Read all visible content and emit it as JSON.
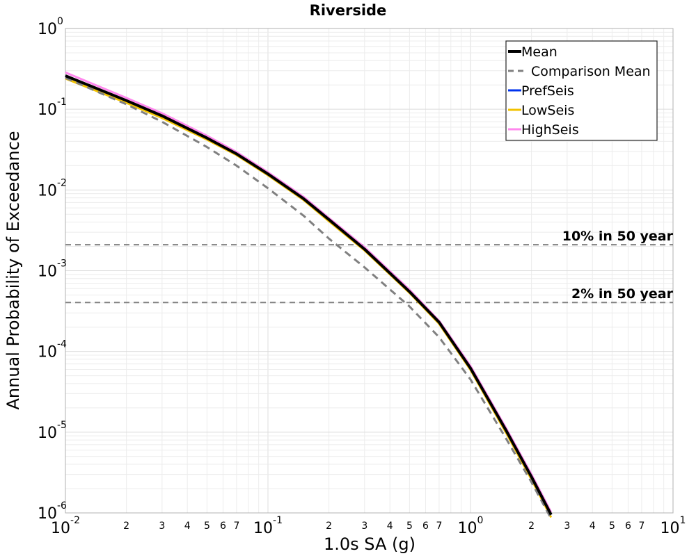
{
  "chart_data": {
    "type": "line",
    "title": "Riverside",
    "xlabel": "1.0s SA (g)",
    "ylabel": "Annual Probability of Exceedance",
    "xscale": "log",
    "yscale": "log",
    "xlim": [
      0.01,
      10
    ],
    "ylim": [
      1e-06,
      1
    ],
    "grid": true,
    "legend_position": "top-right",
    "x_major_ticks": [
      {
        "value": 0.01,
        "base": "10",
        "exp": "-2"
      },
      {
        "value": 0.1,
        "base": "10",
        "exp": "-1"
      },
      {
        "value": 1,
        "base": "10",
        "exp": "0"
      },
      {
        "value": 10,
        "base": "10",
        "exp": "1"
      }
    ],
    "y_major_ticks": [
      {
        "value": 1,
        "base": "10",
        "exp": "0"
      },
      {
        "value": 0.1,
        "base": "10",
        "exp": "-1"
      },
      {
        "value": 0.01,
        "base": "10",
        "exp": "-2"
      },
      {
        "value": 0.001,
        "base": "10",
        "exp": "-3"
      },
      {
        "value": 0.0001,
        "base": "10",
        "exp": "-4"
      },
      {
        "value": 1e-05,
        "base": "10",
        "exp": "-5"
      },
      {
        "value": 1e-06,
        "base": "10",
        "exp": "-6"
      }
    ],
    "x_minor_tick_labels": [
      "2",
      "3",
      "4",
      "5",
      "6",
      "7"
    ],
    "reference_lines": [
      {
        "label": "10% in 50 year",
        "y": 0.0021
      },
      {
        "label": "2% in 50 year",
        "y": 0.000404
      }
    ],
    "series": [
      {
        "name": "PrefSeis",
        "color": "#0033ee",
        "dash": "solid",
        "x": [
          0.01,
          0.02,
          0.03,
          0.05,
          0.07,
          0.1,
          0.15,
          0.2,
          0.3,
          0.5,
          0.7,
          1.0,
          1.5,
          2.0,
          2.5
        ],
        "y": [
          0.26,
          0.128,
          0.083,
          0.044,
          0.028,
          0.0158,
          0.0078,
          0.0043,
          0.00185,
          0.00055,
          0.00023,
          6.2e-05,
          1.05e-05,
          2.8e-06,
          9.5e-07
        ]
      },
      {
        "name": "LowSeis",
        "color": "#f2c200",
        "dash": "solid",
        "x": [
          0.01,
          0.02,
          0.03,
          0.05,
          0.07,
          0.1,
          0.15,
          0.2,
          0.3,
          0.5,
          0.7,
          1.0,
          1.5,
          2.0,
          2.5
        ],
        "y": [
          0.24,
          0.12,
          0.078,
          0.042,
          0.027,
          0.0152,
          0.0075,
          0.0041,
          0.00178,
          0.00053,
          0.00022,
          5.9e-05,
          9.8e-06,
          2.6e-06,
          8.8e-07
        ]
      },
      {
        "name": "HighSeis",
        "color": "#ff88ee",
        "dash": "solid",
        "x": [
          0.01,
          0.02,
          0.03,
          0.05,
          0.07,
          0.1,
          0.15,
          0.2,
          0.3,
          0.5,
          0.7,
          1.0,
          1.5,
          2.0,
          2.5
        ],
        "y": [
          0.285,
          0.138,
          0.089,
          0.047,
          0.0295,
          0.0166,
          0.0082,
          0.0045,
          0.00195,
          0.00058,
          0.00024,
          6.6e-05,
          1.12e-05,
          3e-06,
          1.02e-06
        ]
      },
      {
        "name": "Comparison Mean",
        "color": "#808080",
        "dash": "dashed",
        "x": [
          0.01,
          0.02,
          0.03,
          0.05,
          0.07,
          0.1,
          0.15,
          0.2,
          0.3,
          0.5,
          0.7,
          1.0,
          1.5,
          2.0,
          2.5
        ],
        "y": [
          0.245,
          0.115,
          0.07,
          0.034,
          0.02,
          0.0105,
          0.0048,
          0.0025,
          0.0011,
          0.00036,
          0.00015,
          4.5e-05,
          8.3e-06,
          2.4e-06,
          8.5e-07
        ]
      },
      {
        "name": "Mean",
        "color": "#000000",
        "dash": "solid",
        "x": [
          0.01,
          0.02,
          0.03,
          0.05,
          0.07,
          0.1,
          0.15,
          0.2,
          0.3,
          0.5,
          0.7,
          1.0,
          1.5,
          2.0,
          2.5
        ],
        "y": [
          0.26,
          0.128,
          0.083,
          0.044,
          0.028,
          0.0158,
          0.0078,
          0.0043,
          0.00185,
          0.00055,
          0.00023,
          6.2e-05,
          1.05e-05,
          2.8e-06,
          9.5e-07
        ]
      }
    ],
    "legend": [
      {
        "name": "Mean",
        "color": "#000000",
        "dash": "solid",
        "width": 4
      },
      {
        "name": "Comparison Mean",
        "color": "#808080",
        "dash": "dashed",
        "width": 3
      },
      {
        "name": "PrefSeis",
        "color": "#0033ee",
        "dash": "solid",
        "width": 3
      },
      {
        "name": "LowSeis",
        "color": "#f2c200",
        "dash": "solid",
        "width": 3
      },
      {
        "name": "HighSeis",
        "color": "#ff88ee",
        "dash": "solid",
        "width": 3
      }
    ]
  }
}
